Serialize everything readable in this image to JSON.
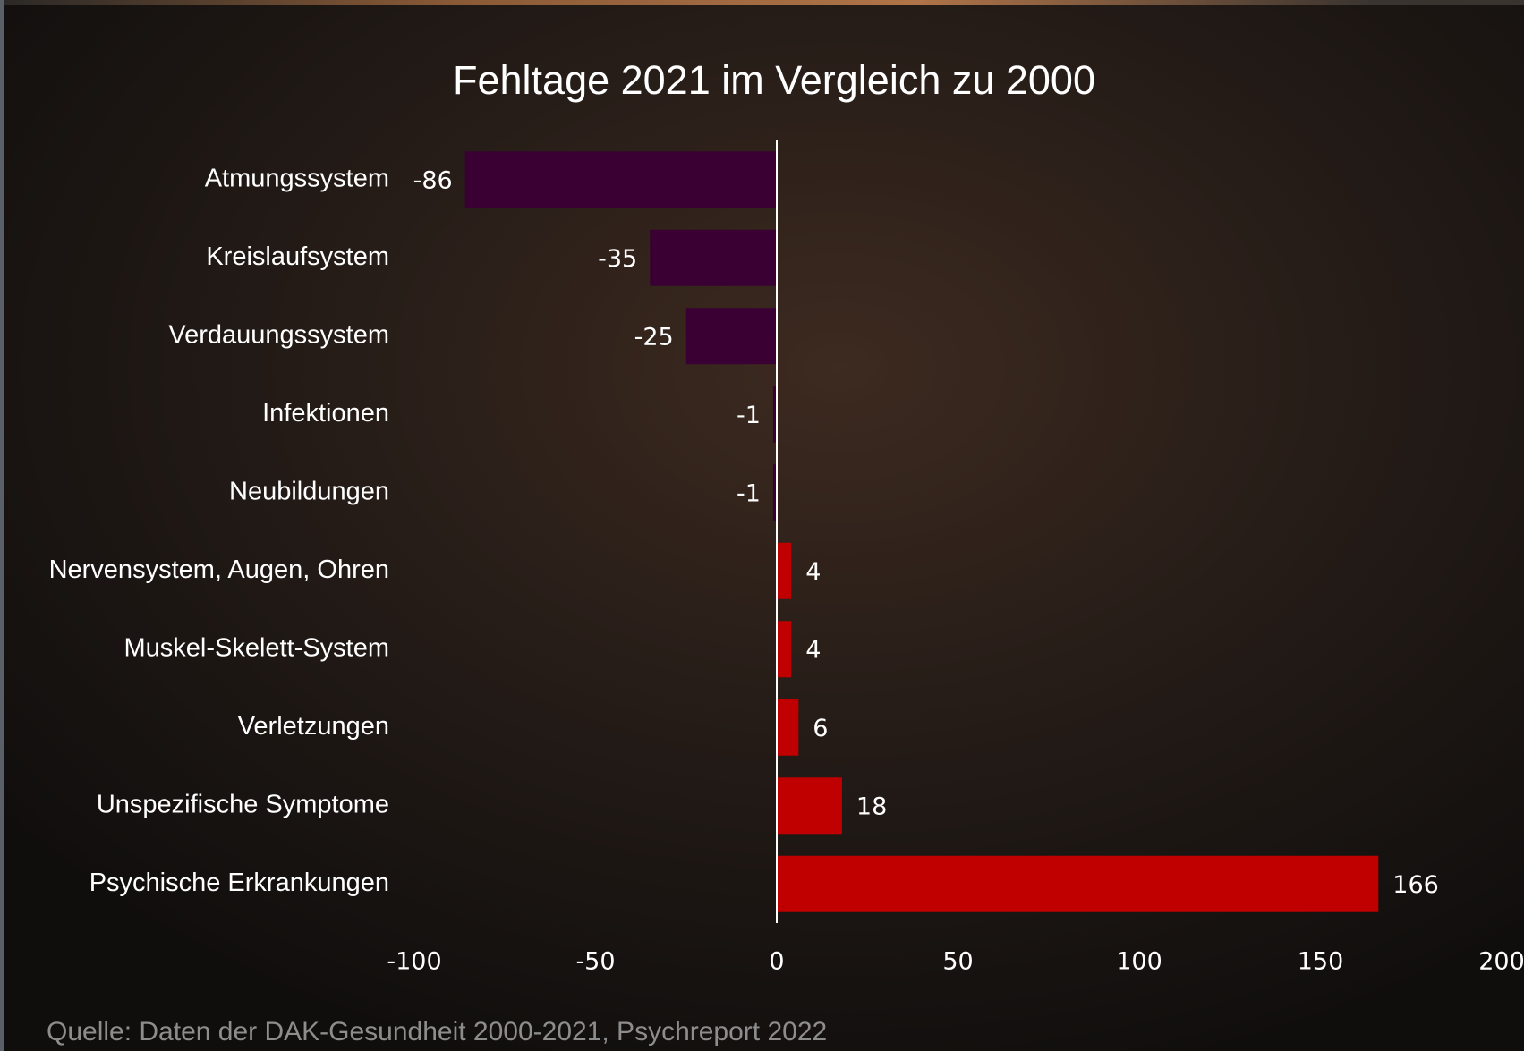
{
  "chart_data": {
    "type": "barh",
    "title": "Fehltage 2021 im Vergleich zu 2000",
    "source": "Quelle: Daten der DAK-Gesundheit 2000-2021, Psychreport 2022",
    "categories": [
      "Atmungssystem",
      "Kreislaufsystem",
      "Verdauungssystem",
      "Infektionen",
      "Neubildungen",
      "Nervensystem, Augen, Ohren",
      "Muskel-Skelett-System",
      "Verletzungen",
      "Unspezifische Symptome",
      "Psychische Erkrankungen"
    ],
    "values": [
      -86,
      -35,
      -25,
      -1,
      -1,
      4,
      4,
      6,
      18,
      166
    ],
    "colors": [
      "#3a0033",
      "#3a0033",
      "#3a0033",
      "#3a0033",
      "#3a0033",
      "#c00000",
      "#c00000",
      "#c00000",
      "#c00000",
      "#c00000"
    ],
    "xlim": [
      -100,
      200
    ],
    "xticks": [
      -100,
      -50,
      0,
      50,
      100,
      150,
      200
    ],
    "grid": false
  }
}
